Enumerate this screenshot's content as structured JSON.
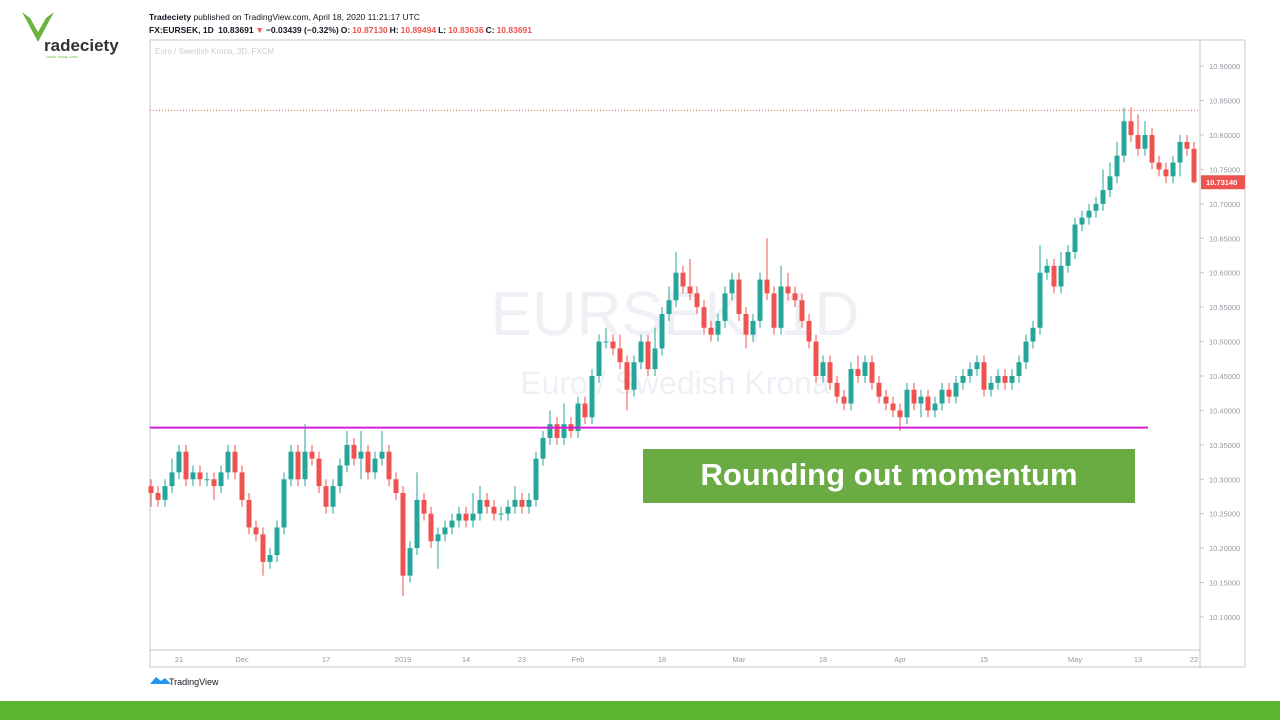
{
  "brand": {
    "logo_text": "radeciety",
    "logo_tagline": "LEARN. TRADE. EARN."
  },
  "header": {
    "author": "Tradeciety",
    "published": "published on TradingView.com, April 18, 2020 11:21:17 UTC",
    "symbol": "FX:EURSEK, 1D",
    "last": "10.83691",
    "arrow": "▼",
    "change": "−0.03439 (−0.32%)",
    "ohlc": [
      {
        "key": "O:",
        "value": "10.87130"
      },
      {
        "key": "H:",
        "value": "10.89494"
      },
      {
        "key": "L:",
        "value": "10.83636"
      },
      {
        "key": "C:",
        "value": "10.83691"
      }
    ]
  },
  "footer": {
    "brand": "TradingView"
  },
  "chart_data": {
    "type": "candlestick",
    "legend_text": "Euro / Swedish Krona, 3D, FXCM",
    "watermark": "EURSEK, 1D",
    "watermark_sub": "Euro / Swedish Krona",
    "annotation": "Rounding out momentum",
    "up_color": "#26a69a",
    "down_color": "#ef5350",
    "ylim": [
      10.052,
      10.938
    ],
    "yticks": [
      {
        "value": 10.1,
        "label": "10.10000"
      },
      {
        "value": 10.15,
        "label": "10.15000"
      },
      {
        "value": 10.2,
        "label": "10.20000"
      },
      {
        "value": 10.25,
        "label": "10.25000"
      },
      {
        "value": 10.3,
        "label": "10.30000"
      },
      {
        "value": 10.35,
        "label": "10.35000"
      },
      {
        "value": 10.4,
        "label": "10.40000"
      },
      {
        "value": 10.45,
        "label": "10.45000"
      },
      {
        "value": 10.5,
        "label": "10.50000"
      },
      {
        "value": 10.55,
        "label": "10.55000"
      },
      {
        "value": 10.6,
        "label": "10.60000"
      },
      {
        "value": 10.65,
        "label": "10.65000"
      },
      {
        "value": 10.7,
        "label": "10.70000"
      },
      {
        "value": 10.75,
        "label": "10.75000"
      },
      {
        "value": 10.8,
        "label": "10.80000"
      },
      {
        "value": 10.85,
        "label": "10.85000"
      },
      {
        "value": 10.9,
        "label": "10.90000"
      }
    ],
    "last_price": {
      "value": 10.7314,
      "label": "10.73140",
      "color": "#ef5350"
    },
    "price_line": {
      "value": 10.836,
      "color": "#ef5350"
    },
    "support_line": {
      "value": 10.375,
      "color": "#d21fd2"
    },
    "categories": [
      null,
      null,
      null,
      null,
      "21",
      null,
      null,
      null,
      null,
      null,
      null,
      null,
      null,
      "Dec",
      null,
      null,
      null,
      null,
      null,
      null,
      null,
      null,
      null,
      null,
      null,
      "17",
      null,
      null,
      null,
      null,
      null,
      null,
      null,
      null,
      null,
      null,
      "2019",
      null,
      null,
      null,
      null,
      null,
      null,
      null,
      null,
      "14",
      null,
      null,
      null,
      null,
      null,
      null,
      null,
      "23",
      null,
      null,
      null,
      null,
      null,
      null,
      null,
      "Feb",
      null,
      null,
      null,
      null,
      null,
      null,
      null,
      null,
      null,
      null,
      null,
      "18",
      null,
      null,
      null,
      null,
      null,
      null,
      null,
      null,
      null,
      null,
      "Mar",
      null,
      null,
      null,
      null,
      null,
      null,
      null,
      null,
      null,
      null,
      null,
      "18",
      null,
      null,
      null,
      null,
      null,
      null,
      null,
      null,
      null,
      null,
      "Apr",
      null,
      null,
      null,
      null,
      null,
      null,
      null,
      null,
      null,
      null,
      null,
      "15",
      null,
      null,
      null,
      null,
      null,
      null,
      null,
      null,
      null,
      null,
      null,
      null,
      "May",
      null,
      null,
      null,
      null,
      null,
      null,
      null,
      null,
      "13",
      null,
      null,
      null,
      null,
      null,
      null,
      null,
      "22"
    ],
    "ohlc": [
      [
        10.29,
        10.3,
        10.26,
        10.28
      ],
      [
        10.28,
        10.29,
        10.26,
        10.27
      ],
      [
        10.27,
        10.3,
        10.26,
        10.29
      ],
      [
        10.29,
        10.33,
        10.28,
        10.31
      ],
      [
        10.31,
        10.35,
        10.3,
        10.34
      ],
      [
        10.34,
        10.35,
        10.29,
        10.3
      ],
      [
        10.3,
        10.32,
        10.29,
        10.31
      ],
      [
        10.31,
        10.32,
        10.29,
        10.3
      ],
      [
        10.3,
        10.31,
        10.29,
        10.3
      ],
      [
        10.3,
        10.31,
        10.27,
        10.29
      ],
      [
        10.29,
        10.32,
        10.28,
        10.31
      ],
      [
        10.31,
        10.35,
        10.3,
        10.34
      ],
      [
        10.34,
        10.35,
        10.3,
        10.31
      ],
      [
        10.31,
        10.32,
        10.26,
        10.27
      ],
      [
        10.27,
        10.28,
        10.22,
        10.23
      ],
      [
        10.23,
        10.24,
        10.21,
        10.22
      ],
      [
        10.22,
        10.23,
        10.16,
        10.18
      ],
      [
        10.18,
        10.2,
        10.17,
        10.19
      ],
      [
        10.19,
        10.24,
        10.18,
        10.23
      ],
      [
        10.23,
        10.31,
        10.22,
        10.3
      ],
      [
        10.3,
        10.35,
        10.29,
        10.34
      ],
      [
        10.34,
        10.35,
        10.29,
        10.3
      ],
      [
        10.3,
        10.38,
        10.29,
        10.34
      ],
      [
        10.34,
        10.35,
        10.32,
        10.33
      ],
      [
        10.33,
        10.34,
        10.28,
        10.29
      ],
      [
        10.29,
        10.3,
        10.25,
        10.26
      ],
      [
        10.26,
        10.3,
        10.25,
        10.29
      ],
      [
        10.29,
        10.33,
        10.28,
        10.32
      ],
      [
        10.32,
        10.37,
        10.31,
        10.35
      ],
      [
        10.35,
        10.36,
        10.32,
        10.33
      ],
      [
        10.33,
        10.37,
        10.3,
        10.34
      ],
      [
        10.34,
        10.35,
        10.3,
        10.31
      ],
      [
        10.31,
        10.34,
        10.3,
        10.33
      ],
      [
        10.33,
        10.37,
        10.32,
        10.34
      ],
      [
        10.34,
        10.35,
        10.29,
        10.3
      ],
      [
        10.3,
        10.31,
        10.27,
        10.28
      ],
      [
        10.28,
        10.29,
        10.13,
        10.16
      ],
      [
        10.16,
        10.21,
        10.15,
        10.2
      ],
      [
        10.2,
        10.31,
        10.19,
        10.27
      ],
      [
        10.27,
        10.28,
        10.24,
        10.25
      ],
      [
        10.25,
        10.26,
        10.2,
        10.21
      ],
      [
        10.21,
        10.23,
        10.17,
        10.22
      ],
      [
        10.22,
        10.24,
        10.21,
        10.23
      ],
      [
        10.23,
        10.25,
        10.22,
        10.24
      ],
      [
        10.24,
        10.26,
        10.23,
        10.25
      ],
      [
        10.25,
        10.26,
        10.23,
        10.24
      ],
      [
        10.24,
        10.28,
        10.23,
        10.25
      ],
      [
        10.25,
        10.29,
        10.24,
        10.27
      ],
      [
        10.27,
        10.28,
        10.25,
        10.26
      ],
      [
        10.26,
        10.27,
        10.24,
        10.25
      ],
      [
        10.25,
        10.26,
        10.24,
        10.25
      ],
      [
        10.25,
        10.27,
        10.24,
        10.26
      ],
      [
        10.26,
        10.29,
        10.25,
        10.27
      ],
      [
        10.27,
        10.28,
        10.25,
        10.26
      ],
      [
        10.26,
        10.28,
        10.25,
        10.27
      ],
      [
        10.27,
        10.34,
        10.26,
        10.33
      ],
      [
        10.33,
        10.37,
        10.32,
        10.36
      ],
      [
        10.36,
        10.4,
        10.35,
        10.38
      ],
      [
        10.38,
        10.39,
        10.35,
        10.36
      ],
      [
        10.36,
        10.41,
        10.35,
        10.38
      ],
      [
        10.38,
        10.39,
        10.36,
        10.37
      ],
      [
        10.37,
        10.42,
        10.36,
        10.41
      ],
      [
        10.41,
        10.42,
        10.38,
        10.39
      ],
      [
        10.39,
        10.46,
        10.38,
        10.45
      ],
      [
        10.45,
        10.51,
        10.44,
        10.5
      ],
      [
        10.5,
        10.52,
        10.49,
        10.5
      ],
      [
        10.5,
        10.51,
        10.48,
        10.49
      ],
      [
        10.49,
        10.51,
        10.46,
        10.47
      ],
      [
        10.47,
        10.48,
        10.4,
        10.43
      ],
      [
        10.43,
        10.48,
        10.42,
        10.47
      ],
      [
        10.47,
        10.51,
        10.46,
        10.5
      ],
      [
        10.5,
        10.51,
        10.45,
        10.46
      ],
      [
        10.46,
        10.52,
        10.45,
        10.49
      ],
      [
        10.49,
        10.55,
        10.48,
        10.54
      ],
      [
        10.54,
        10.58,
        10.53,
        10.56
      ],
      [
        10.56,
        10.63,
        10.55,
        10.6
      ],
      [
        10.6,
        10.61,
        10.57,
        10.58
      ],
      [
        10.58,
        10.62,
        10.56,
        10.57
      ],
      [
        10.57,
        10.58,
        10.54,
        10.55
      ],
      [
        10.55,
        10.56,
        10.51,
        10.52
      ],
      [
        10.52,
        10.53,
        10.5,
        10.51
      ],
      [
        10.51,
        10.54,
        10.5,
        10.53
      ],
      [
        10.53,
        10.58,
        10.52,
        10.57
      ],
      [
        10.57,
        10.6,
        10.56,
        10.59
      ],
      [
        10.59,
        10.6,
        10.53,
        10.54
      ],
      [
        10.54,
        10.55,
        10.49,
        10.51
      ],
      [
        10.51,
        10.54,
        10.5,
        10.53
      ],
      [
        10.53,
        10.6,
        10.52,
        10.59
      ],
      [
        10.59,
        10.65,
        10.56,
        10.57
      ],
      [
        10.57,
        10.58,
        10.51,
        10.52
      ],
      [
        10.52,
        10.61,
        10.51,
        10.58
      ],
      [
        10.58,
        10.6,
        10.56,
        10.57
      ],
      [
        10.57,
        10.58,
        10.55,
        10.56
      ],
      [
        10.56,
        10.57,
        10.52,
        10.53
      ],
      [
        10.53,
        10.54,
        10.49,
        10.5
      ],
      [
        10.5,
        10.51,
        10.44,
        10.45
      ],
      [
        10.45,
        10.48,
        10.44,
        10.47
      ],
      [
        10.47,
        10.48,
        10.43,
        10.44
      ],
      [
        10.44,
        10.45,
        10.41,
        10.42
      ],
      [
        10.42,
        10.43,
        10.4,
        10.41
      ],
      [
        10.41,
        10.47,
        10.4,
        10.46
      ],
      [
        10.46,
        10.48,
        10.44,
        10.45
      ],
      [
        10.45,
        10.48,
        10.44,
        10.47
      ],
      [
        10.47,
        10.48,
        10.43,
        10.44
      ],
      [
        10.44,
        10.45,
        10.41,
        10.42
      ],
      [
        10.42,
        10.43,
        10.4,
        10.41
      ],
      [
        10.41,
        10.42,
        10.39,
        10.4
      ],
      [
        10.4,
        10.41,
        10.37,
        10.39
      ],
      [
        10.39,
        10.44,
        10.38,
        10.43
      ],
      [
        10.43,
        10.44,
        10.4,
        10.41
      ],
      [
        10.41,
        10.43,
        10.39,
        10.42
      ],
      [
        10.42,
        10.43,
        10.39,
        10.4
      ],
      [
        10.4,
        10.42,
        10.39,
        10.41
      ],
      [
        10.41,
        10.44,
        10.4,
        10.43
      ],
      [
        10.43,
        10.44,
        10.41,
        10.42
      ],
      [
        10.42,
        10.45,
        10.41,
        10.44
      ],
      [
        10.44,
        10.46,
        10.43,
        10.45
      ],
      [
        10.45,
        10.47,
        10.44,
        10.46
      ],
      [
        10.46,
        10.48,
        10.45,
        10.47
      ],
      [
        10.47,
        10.48,
        10.42,
        10.43
      ],
      [
        10.43,
        10.45,
        10.42,
        10.44
      ],
      [
        10.44,
        10.46,
        10.43,
        10.45
      ],
      [
        10.45,
        10.46,
        10.43,
        10.44
      ],
      [
        10.44,
        10.46,
        10.43,
        10.45
      ],
      [
        10.45,
        10.48,
        10.44,
        10.47
      ],
      [
        10.47,
        10.51,
        10.46,
        10.5
      ],
      [
        10.5,
        10.53,
        10.49,
        10.52
      ],
      [
        10.52,
        10.64,
        10.51,
        10.6
      ],
      [
        10.6,
        10.62,
        10.59,
        10.61
      ],
      [
        10.61,
        10.62,
        10.57,
        10.58
      ],
      [
        10.58,
        10.63,
        10.57,
        10.61
      ],
      [
        10.61,
        10.64,
        10.6,
        10.63
      ],
      [
        10.63,
        10.68,
        10.62,
        10.67
      ],
      [
        10.67,
        10.69,
        10.66,
        10.68
      ],
      [
        10.68,
        10.7,
        10.67,
        10.69
      ],
      [
        10.69,
        10.71,
        10.68,
        10.7
      ],
      [
        10.7,
        10.75,
        10.69,
        10.72
      ],
      [
        10.72,
        10.76,
        10.71,
        10.74
      ],
      [
        10.74,
        10.79,
        10.73,
        10.77
      ],
      [
        10.77,
        10.84,
        10.76,
        10.82
      ],
      [
        10.82,
        10.84,
        10.79,
        10.8
      ],
      [
        10.8,
        10.83,
        10.77,
        10.78
      ],
      [
        10.78,
        10.82,
        10.77,
        10.8
      ],
      [
        10.8,
        10.81,
        10.75,
        10.76
      ],
      [
        10.76,
        10.77,
        10.74,
        10.75
      ],
      [
        10.75,
        10.76,
        10.73,
        10.74
      ],
      [
        10.74,
        10.77,
        10.73,
        10.76
      ],
      [
        10.76,
        10.8,
        10.74,
        10.79
      ],
      [
        10.79,
        10.8,
        10.77,
        10.78
      ],
      [
        10.78,
        10.79,
        10.73,
        10.7314
      ]
    ]
  }
}
